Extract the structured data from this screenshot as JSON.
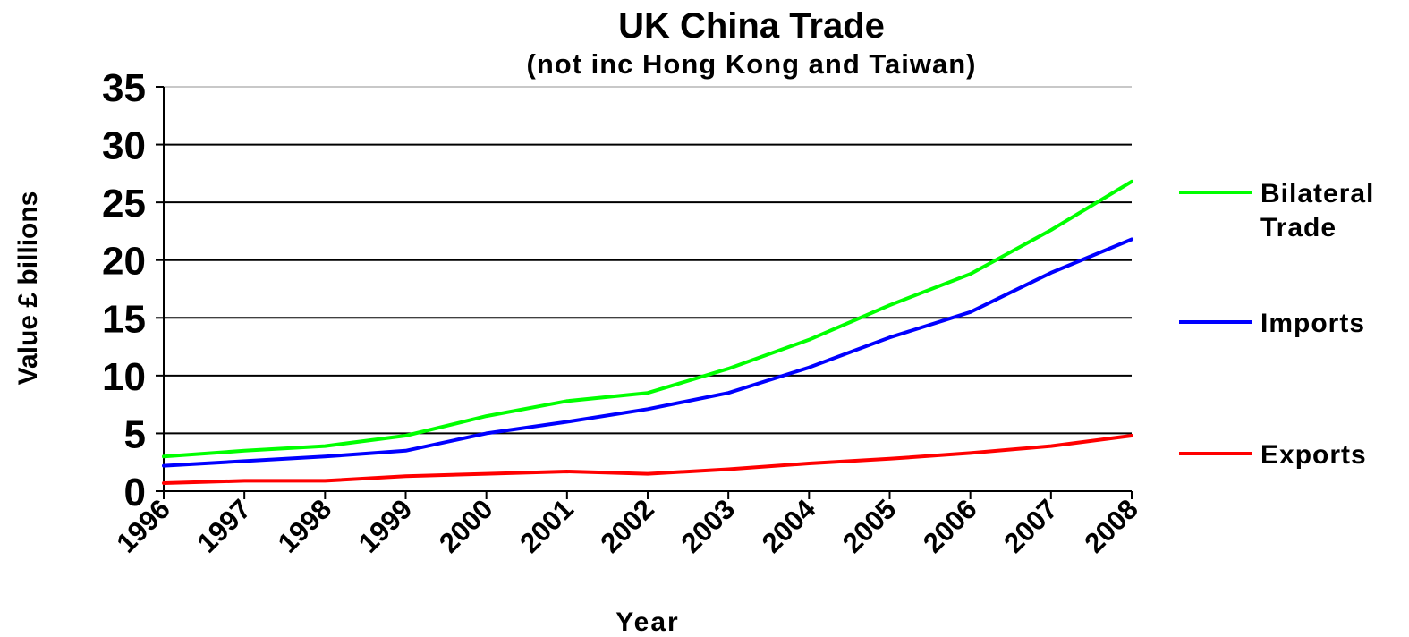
{
  "chart_data": {
    "type": "line",
    "title": "UK China Trade",
    "subtitle": "(not inc Hong Kong and Taiwan)",
    "xlabel": "Year",
    "ylabel": "Value £ billions",
    "x": [
      "1996",
      "1997",
      "1998",
      "1999",
      "2000",
      "2001",
      "2002",
      "2003",
      "2004",
      "2005",
      "2006",
      "2007",
      "2008"
    ],
    "ylim": [
      0,
      35
    ],
    "yticks": [
      "0",
      "5",
      "10",
      "15",
      "20",
      "25",
      "30",
      "35"
    ],
    "grid": true,
    "legend_position": "right",
    "series": [
      {
        "name": "Bilateral Trade",
        "name_lines": [
          "Bilateral",
          "Trade"
        ],
        "color": "#00ff00",
        "values": [
          3.0,
          3.5,
          3.9,
          4.8,
          6.5,
          7.8,
          8.5,
          10.6,
          13.1,
          16.1,
          18.8,
          22.6,
          26.8
        ]
      },
      {
        "name": "Imports",
        "name_lines": [
          "Imports"
        ],
        "color": "#0000ff",
        "values": [
          2.2,
          2.6,
          3.0,
          3.5,
          5.0,
          6.0,
          7.1,
          8.5,
          10.7,
          13.3,
          15.5,
          18.9,
          21.8
        ]
      },
      {
        "name": "Exports",
        "name_lines": [
          "Exports"
        ],
        "color": "#ff0000",
        "values": [
          0.7,
          0.9,
          0.9,
          1.3,
          1.5,
          1.7,
          1.5,
          1.9,
          2.4,
          2.8,
          3.3,
          3.9,
          4.8
        ]
      }
    ]
  }
}
